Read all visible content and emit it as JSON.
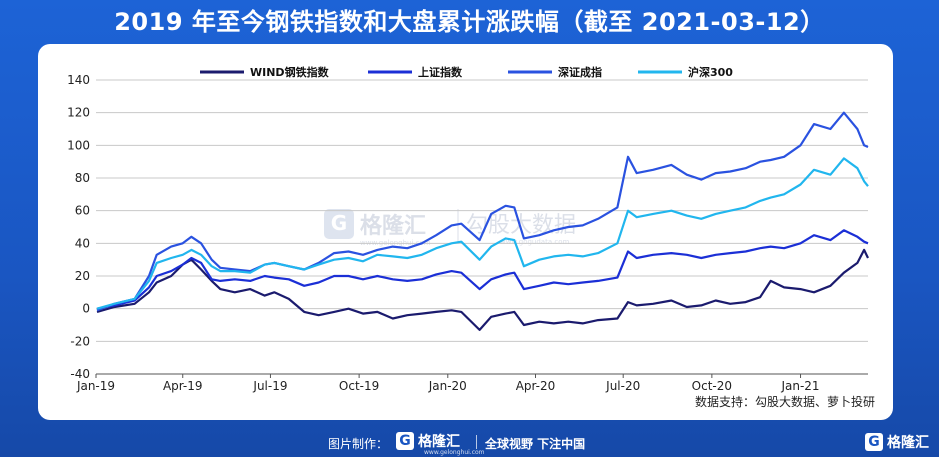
{
  "title": "2019 年至今钢铁指数和大盘累计涨跌幅（截至 2021-03-12）",
  "source": "数据支持：勾股大数据、萝卜投研",
  "watermark": {
    "brand": "格隆汇",
    "brand_site": "www.gelonghui.com",
    "partner": "勾股大数据",
    "partner_site": "www.gogudata.com"
  },
  "footer": {
    "credit": "图片制作：",
    "brand": "格隆汇",
    "brand_site": "www.gelonghui.com",
    "slogan": "全球视野 下注中国",
    "right_brand": "格隆汇"
  },
  "colors": {
    "background": "#1a56c2",
    "grid": "#c8c8c8"
  },
  "chart_data": {
    "type": "line",
    "ylim": [
      -40,
      140
    ],
    "yticks": [
      -40,
      -20,
      0,
      20,
      40,
      60,
      80,
      100,
      120,
      140
    ],
    "x_ticks": [
      "Jan-19",
      "Apr-19",
      "Jul-19",
      "Oct-19",
      "Jan-20",
      "Apr-20",
      "Jul-20",
      "Oct-20",
      "Jan-21"
    ],
    "x_range": [
      "2019-01-01",
      "2021-03-12"
    ],
    "legend_position": "top",
    "grid": "horizontal",
    "series": [
      {
        "name": "WIND钢铁指数",
        "color": "#1b1b6e",
        "points": [
          [
            "2019-01-02",
            -2
          ],
          [
            "2019-01-20",
            1
          ],
          [
            "2019-02-10",
            3
          ],
          [
            "2019-02-25",
            10
          ],
          [
            "2019-03-05",
            16
          ],
          [
            "2019-03-20",
            20
          ],
          [
            "2019-04-01",
            27
          ],
          [
            "2019-04-10",
            30
          ],
          [
            "2019-04-20",
            24
          ],
          [
            "2019-05-01",
            17
          ],
          [
            "2019-05-10",
            12
          ],
          [
            "2019-05-25",
            10
          ],
          [
            "2019-06-10",
            12
          ],
          [
            "2019-06-25",
            8
          ],
          [
            "2019-07-05",
            10
          ],
          [
            "2019-07-20",
            6
          ],
          [
            "2019-08-05",
            -2
          ],
          [
            "2019-08-20",
            -4
          ],
          [
            "2019-09-05",
            -2
          ],
          [
            "2019-09-20",
            0
          ],
          [
            "2019-10-05",
            -3
          ],
          [
            "2019-10-20",
            -2
          ],
          [
            "2019-11-05",
            -6
          ],
          [
            "2019-11-20",
            -4
          ],
          [
            "2019-12-05",
            -3
          ],
          [
            "2019-12-20",
            -2
          ],
          [
            "2020-01-05",
            -1
          ],
          [
            "2020-01-15",
            -2
          ],
          [
            "2020-02-03",
            -13
          ],
          [
            "2020-02-15",
            -5
          ],
          [
            "2020-03-01",
            -3
          ],
          [
            "2020-03-10",
            -2
          ],
          [
            "2020-03-20",
            -10
          ],
          [
            "2020-04-05",
            -8
          ],
          [
            "2020-04-20",
            -9
          ],
          [
            "2020-05-05",
            -8
          ],
          [
            "2020-05-20",
            -9
          ],
          [
            "2020-06-05",
            -7
          ],
          [
            "2020-06-25",
            -6
          ],
          [
            "2020-07-06",
            4
          ],
          [
            "2020-07-15",
            2
          ],
          [
            "2020-08-01",
            3
          ],
          [
            "2020-08-20",
            5
          ],
          [
            "2020-09-05",
            1
          ],
          [
            "2020-09-20",
            2
          ],
          [
            "2020-10-05",
            5
          ],
          [
            "2020-10-20",
            3
          ],
          [
            "2020-11-05",
            4
          ],
          [
            "2020-11-20",
            7
          ],
          [
            "2020-12-01",
            17
          ],
          [
            "2020-12-15",
            13
          ],
          [
            "2021-01-01",
            12
          ],
          [
            "2021-01-15",
            10
          ],
          [
            "2021-02-01",
            14
          ],
          [
            "2021-02-15",
            22
          ],
          [
            "2021-03-01",
            28
          ],
          [
            "2021-03-08",
            36
          ],
          [
            "2021-03-12",
            31
          ]
        ]
      },
      {
        "name": "上证指数",
        "color": "#1b2fd6",
        "points": [
          [
            "2019-01-02",
            0
          ],
          [
            "2019-01-20",
            2
          ],
          [
            "2019-02-10",
            5
          ],
          [
            "2019-02-25",
            13
          ],
          [
            "2019-03-05",
            20
          ],
          [
            "2019-03-20",
            23
          ],
          [
            "2019-04-01",
            27
          ],
          [
            "2019-04-10",
            31
          ],
          [
            "2019-04-20",
            28
          ],
          [
            "2019-05-01",
            18
          ],
          [
            "2019-05-10",
            17
          ],
          [
            "2019-05-25",
            18
          ],
          [
            "2019-06-10",
            17
          ],
          [
            "2019-06-25",
            20
          ],
          [
            "2019-07-05",
            19
          ],
          [
            "2019-07-20",
            18
          ],
          [
            "2019-08-05",
            14
          ],
          [
            "2019-08-20",
            16
          ],
          [
            "2019-09-05",
            20
          ],
          [
            "2019-09-20",
            20
          ],
          [
            "2019-10-05",
            18
          ],
          [
            "2019-10-20",
            20
          ],
          [
            "2019-11-05",
            18
          ],
          [
            "2019-11-20",
            17
          ],
          [
            "2019-12-05",
            18
          ],
          [
            "2019-12-20",
            21
          ],
          [
            "2020-01-05",
            23
          ],
          [
            "2020-01-15",
            22
          ],
          [
            "2020-02-03",
            12
          ],
          [
            "2020-02-15",
            18
          ],
          [
            "2020-03-01",
            21
          ],
          [
            "2020-03-10",
            22
          ],
          [
            "2020-03-20",
            12
          ],
          [
            "2020-04-05",
            14
          ],
          [
            "2020-04-20",
            16
          ],
          [
            "2020-05-05",
            15
          ],
          [
            "2020-05-20",
            16
          ],
          [
            "2020-06-05",
            17
          ],
          [
            "2020-06-25",
            19
          ],
          [
            "2020-07-06",
            35
          ],
          [
            "2020-07-15",
            31
          ],
          [
            "2020-08-01",
            33
          ],
          [
            "2020-08-20",
            34
          ],
          [
            "2020-09-05",
            33
          ],
          [
            "2020-09-20",
            31
          ],
          [
            "2020-10-05",
            33
          ],
          [
            "2020-10-20",
            34
          ],
          [
            "2020-11-05",
            35
          ],
          [
            "2020-11-20",
            37
          ],
          [
            "2020-12-01",
            38
          ],
          [
            "2020-12-15",
            37
          ],
          [
            "2021-01-01",
            40
          ],
          [
            "2021-01-15",
            45
          ],
          [
            "2021-02-01",
            42
          ],
          [
            "2021-02-15",
            48
          ],
          [
            "2021-03-01",
            44
          ],
          [
            "2021-03-08",
            41
          ],
          [
            "2021-03-12",
            40
          ]
        ]
      },
      {
        "name": "深证成指",
        "color": "#2a52e0",
        "points": [
          [
            "2019-01-02",
            -1
          ],
          [
            "2019-01-20",
            3
          ],
          [
            "2019-02-10",
            6
          ],
          [
            "2019-02-25",
            20
          ],
          [
            "2019-03-05",
            33
          ],
          [
            "2019-03-20",
            38
          ],
          [
            "2019-04-01",
            40
          ],
          [
            "2019-04-10",
            44
          ],
          [
            "2019-04-20",
            40
          ],
          [
            "2019-05-01",
            30
          ],
          [
            "2019-05-10",
            25
          ],
          [
            "2019-05-25",
            24
          ],
          [
            "2019-06-10",
            23
          ],
          [
            "2019-06-25",
            27
          ],
          [
            "2019-07-05",
            28
          ],
          [
            "2019-07-20",
            26
          ],
          [
            "2019-08-05",
            24
          ],
          [
            "2019-08-20",
            28
          ],
          [
            "2019-09-05",
            34
          ],
          [
            "2019-09-20",
            35
          ],
          [
            "2019-10-05",
            33
          ],
          [
            "2019-10-20",
            36
          ],
          [
            "2019-11-05",
            38
          ],
          [
            "2019-11-20",
            37
          ],
          [
            "2019-12-05",
            40
          ],
          [
            "2019-12-20",
            45
          ],
          [
            "2020-01-05",
            51
          ],
          [
            "2020-01-15",
            52
          ],
          [
            "2020-02-03",
            42
          ],
          [
            "2020-02-15",
            58
          ],
          [
            "2020-03-01",
            63
          ],
          [
            "2020-03-10",
            62
          ],
          [
            "2020-03-20",
            43
          ],
          [
            "2020-04-05",
            45
          ],
          [
            "2020-04-20",
            48
          ],
          [
            "2020-05-05",
            50
          ],
          [
            "2020-05-20",
            51
          ],
          [
            "2020-06-05",
            55
          ],
          [
            "2020-06-25",
            62
          ],
          [
            "2020-07-06",
            93
          ],
          [
            "2020-07-15",
            83
          ],
          [
            "2020-08-01",
            85
          ],
          [
            "2020-08-20",
            88
          ],
          [
            "2020-09-05",
            82
          ],
          [
            "2020-09-20",
            79
          ],
          [
            "2020-10-05",
            83
          ],
          [
            "2020-10-20",
            84
          ],
          [
            "2020-11-05",
            86
          ],
          [
            "2020-11-20",
            90
          ],
          [
            "2020-12-01",
            91
          ],
          [
            "2020-12-15",
            93
          ],
          [
            "2021-01-01",
            100
          ],
          [
            "2021-01-15",
            113
          ],
          [
            "2021-02-01",
            110
          ],
          [
            "2021-02-15",
            120
          ],
          [
            "2021-03-01",
            110
          ],
          [
            "2021-03-08",
            100
          ],
          [
            "2021-03-12",
            99
          ]
        ]
      },
      {
        "name": "沪深300",
        "color": "#21b6ee",
        "points": [
          [
            "2019-01-02",
            0
          ],
          [
            "2019-01-20",
            3
          ],
          [
            "2019-02-10",
            6
          ],
          [
            "2019-02-25",
            17
          ],
          [
            "2019-03-05",
            28
          ],
          [
            "2019-03-20",
            31
          ],
          [
            "2019-04-01",
            33
          ],
          [
            "2019-04-10",
            36
          ],
          [
            "2019-04-20",
            33
          ],
          [
            "2019-05-01",
            26
          ],
          [
            "2019-05-10",
            23
          ],
          [
            "2019-05-25",
            23
          ],
          [
            "2019-06-10",
            22
          ],
          [
            "2019-06-25",
            27
          ],
          [
            "2019-07-05",
            28
          ],
          [
            "2019-07-20",
            26
          ],
          [
            "2019-08-05",
            24
          ],
          [
            "2019-08-20",
            27
          ],
          [
            "2019-09-05",
            30
          ],
          [
            "2019-09-20",
            31
          ],
          [
            "2019-10-05",
            29
          ],
          [
            "2019-10-20",
            33
          ],
          [
            "2019-11-05",
            32
          ],
          [
            "2019-11-20",
            31
          ],
          [
            "2019-12-05",
            33
          ],
          [
            "2019-12-20",
            37
          ],
          [
            "2020-01-05",
            40
          ],
          [
            "2020-01-15",
            41
          ],
          [
            "2020-02-03",
            30
          ],
          [
            "2020-02-15",
            38
          ],
          [
            "2020-03-01",
            43
          ],
          [
            "2020-03-10",
            42
          ],
          [
            "2020-03-20",
            26
          ],
          [
            "2020-04-05",
            30
          ],
          [
            "2020-04-20",
            32
          ],
          [
            "2020-05-05",
            33
          ],
          [
            "2020-05-20",
            32
          ],
          [
            "2020-06-05",
            34
          ],
          [
            "2020-06-25",
            40
          ],
          [
            "2020-07-06",
            60
          ],
          [
            "2020-07-15",
            56
          ],
          [
            "2020-08-01",
            58
          ],
          [
            "2020-08-20",
            60
          ],
          [
            "2020-09-05",
            57
          ],
          [
            "2020-09-20",
            55
          ],
          [
            "2020-10-05",
            58
          ],
          [
            "2020-10-20",
            60
          ],
          [
            "2020-11-05",
            62
          ],
          [
            "2020-11-20",
            66
          ],
          [
            "2020-12-01",
            68
          ],
          [
            "2020-12-15",
            70
          ],
          [
            "2021-01-01",
            76
          ],
          [
            "2021-01-15",
            85
          ],
          [
            "2021-02-01",
            82
          ],
          [
            "2021-02-15",
            92
          ],
          [
            "2021-03-01",
            86
          ],
          [
            "2021-03-08",
            78
          ],
          [
            "2021-03-12",
            75
          ]
        ]
      }
    ]
  }
}
